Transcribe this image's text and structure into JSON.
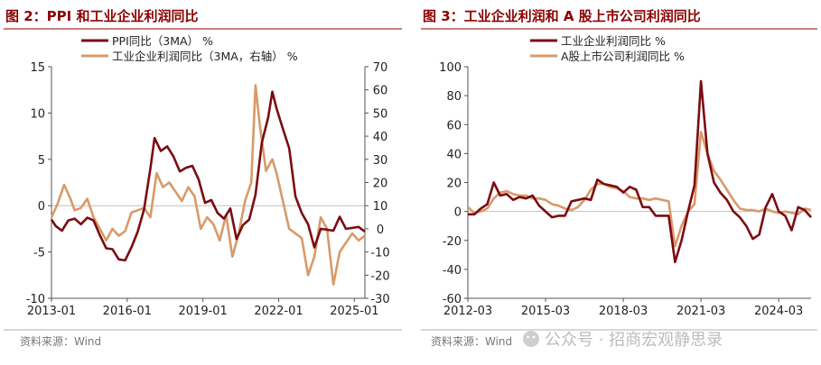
{
  "colors": {
    "title": "#8B0000",
    "series1": "#7B0C12",
    "series2": "#D89A68",
    "axis": "#555555",
    "source": "#777777",
    "watermark": "#B9B9B9"
  },
  "left_figure": {
    "title": "图 2：PPI 和工业企业利润同比",
    "source": "资料来源：Wind"
  },
  "right_figure": {
    "title": "图 3：工业企业利润和 A 股上市公司利润同比",
    "source": "资料来源：Wind"
  },
  "watermark": "公众号 · 招商宏观静思录",
  "chart_data": [
    {
      "type": "line",
      "x_tick_labels": [
        "2013-01",
        "2016-01",
        "2019-01",
        "2022-01",
        "2025-01"
      ],
      "xlim": [
        "2013-01",
        "2025-06"
      ],
      "ylim": [
        -10,
        15
      ],
      "y_ticks": [
        -10,
        -5,
        0,
        5,
        10,
        15
      ],
      "y2lim": [
        -30,
        70
      ],
      "y2_ticks": [
        -30,
        -20,
        -10,
        0,
        10,
        20,
        30,
        40,
        50,
        60,
        70
      ],
      "legend": [
        "PPI同比（3MA） %",
        "工业企业利润同比（3MA，右轴） %"
      ],
      "legend_position": "top",
      "series": [
        {
          "name": "PPI同比（3MA） %",
          "axis": "left",
          "points": [
            [
              "2013-01",
              -1.5
            ],
            [
              "2013-03",
              -2.2
            ],
            [
              "2013-06",
              -2.7
            ],
            [
              "2013-09",
              -1.6
            ],
            [
              "2013-12",
              -1.4
            ],
            [
              "2014-03",
              -2.0
            ],
            [
              "2014-06",
              -1.3
            ],
            [
              "2014-09",
              -1.6
            ],
            [
              "2014-12",
              -3.2
            ],
            [
              "2015-03",
              -4.6
            ],
            [
              "2015-06",
              -4.7
            ],
            [
              "2015-09",
              -5.8
            ],
            [
              "2015-12",
              -5.9
            ],
            [
              "2016-03",
              -4.5
            ],
            [
              "2016-06",
              -2.8
            ],
            [
              "2016-09",
              -0.4
            ],
            [
              "2016-12",
              4.0
            ],
            [
              "2017-02",
              7.3
            ],
            [
              "2017-05",
              5.9
            ],
            [
              "2017-08",
              6.4
            ],
            [
              "2017-11",
              5.3
            ],
            [
              "2018-02",
              3.7
            ],
            [
              "2018-05",
              4.1
            ],
            [
              "2018-08",
              4.3
            ],
            [
              "2018-11",
              2.8
            ],
            [
              "2019-02",
              0.3
            ],
            [
              "2019-05",
              0.6
            ],
            [
              "2019-08",
              -0.8
            ],
            [
              "2019-11",
              -1.4
            ],
            [
              "2020-02",
              -0.3
            ],
            [
              "2020-05",
              -3.6
            ],
            [
              "2020-08",
              -2.1
            ],
            [
              "2020-11",
              -1.5
            ],
            [
              "2021-02",
              1.2
            ],
            [
              "2021-05",
              6.8
            ],
            [
              "2021-08",
              9.5
            ],
            [
              "2021-10",
              12.3
            ],
            [
              "2021-12",
              10.5
            ],
            [
              "2022-03",
              8.3
            ],
            [
              "2022-06",
              6.2
            ],
            [
              "2022-09",
              1.0
            ],
            [
              "2022-12",
              -0.8
            ],
            [
              "2023-03",
              -2.0
            ],
            [
              "2023-06",
              -4.5
            ],
            [
              "2023-09",
              -2.5
            ],
            [
              "2023-12",
              -2.6
            ],
            [
              "2024-03",
              -2.7
            ],
            [
              "2024-06",
              -1.2
            ],
            [
              "2024-09",
              -2.5
            ],
            [
              "2024-12",
              -2.4
            ],
            [
              "2025-03",
              -2.3
            ],
            [
              "2025-06",
              -2.8
            ]
          ]
        },
        {
          "name": "工业企业利润同比（3MA，右轴） %",
          "axis": "right",
          "points": [
            [
              "2013-01",
              5
            ],
            [
              "2013-04",
              11
            ],
            [
              "2013-07",
              19
            ],
            [
              "2013-10",
              13
            ],
            [
              "2013-12",
              8
            ],
            [
              "2014-03",
              9
            ],
            [
              "2014-06",
              13
            ],
            [
              "2014-09",
              5
            ],
            [
              "2014-12",
              0
            ],
            [
              "2015-03",
              -5
            ],
            [
              "2015-06",
              0
            ],
            [
              "2015-09",
              -3
            ],
            [
              "2015-12",
              -1
            ],
            [
              "2016-03",
              7
            ],
            [
              "2016-06",
              8
            ],
            [
              "2016-09",
              9
            ],
            [
              "2016-12",
              5
            ],
            [
              "2017-03",
              24
            ],
            [
              "2017-06",
              18
            ],
            [
              "2017-09",
              20
            ],
            [
              "2017-12",
              16
            ],
            [
              "2018-03",
              12
            ],
            [
              "2018-06",
              18
            ],
            [
              "2018-09",
              14
            ],
            [
              "2018-12",
              0
            ],
            [
              "2019-03",
              5
            ],
            [
              "2019-06",
              2
            ],
            [
              "2019-09",
              -5
            ],
            [
              "2019-12",
              6
            ],
            [
              "2020-03",
              -12
            ],
            [
              "2020-06",
              -2
            ],
            [
              "2020-09",
              12
            ],
            [
              "2020-12",
              20
            ],
            [
              "2021-02",
              62
            ],
            [
              "2021-04",
              45
            ],
            [
              "2021-07",
              25
            ],
            [
              "2021-10",
              30
            ],
            [
              "2021-12",
              24
            ],
            [
              "2022-03",
              12
            ],
            [
              "2022-06",
              0
            ],
            [
              "2022-09",
              -2
            ],
            [
              "2022-12",
              -4
            ],
            [
              "2023-03",
              -20
            ],
            [
              "2023-06",
              -12
            ],
            [
              "2023-09",
              5
            ],
            [
              "2023-12",
              0
            ],
            [
              "2024-03",
              -24
            ],
            [
              "2024-06",
              -10
            ],
            [
              "2024-09",
              -6
            ],
            [
              "2024-12",
              -2
            ],
            [
              "2025-03",
              -5
            ],
            [
              "2025-06",
              -3
            ]
          ]
        }
      ]
    },
    {
      "type": "line",
      "x_tick_labels": [
        "2012-03",
        "2015-03",
        "2018-03",
        "2021-03",
        "2024-03"
      ],
      "xlim": [
        "2012-03",
        "2025-06"
      ],
      "ylim": [
        -60,
        100
      ],
      "y_ticks": [
        -60,
        -40,
        -20,
        0,
        20,
        40,
        60,
        80,
        100
      ],
      "legend": [
        "工业企业利润同比 %",
        "A股上市公司利润同比 %"
      ],
      "legend_position": "top",
      "series": [
        {
          "name": "工业企业利润同比 %",
          "points": [
            [
              "2012-03",
              -2
            ],
            [
              "2012-06",
              -2
            ],
            [
              "2012-09",
              2
            ],
            [
              "2012-12",
              5
            ],
            [
              "2013-03",
              20
            ],
            [
              "2013-06",
              11
            ],
            [
              "2013-09",
              12
            ],
            [
              "2013-12",
              8
            ],
            [
              "2014-03",
              10
            ],
            [
              "2014-06",
              9
            ],
            [
              "2014-09",
              11
            ],
            [
              "2014-12",
              4
            ],
            [
              "2015-03",
              0
            ],
            [
              "2015-06",
              -4
            ],
            [
              "2015-09",
              -3
            ],
            [
              "2015-12",
              -3
            ],
            [
              "2016-03",
              7
            ],
            [
              "2016-06",
              8
            ],
            [
              "2016-09",
              9
            ],
            [
              "2016-12",
              8
            ],
            [
              "2017-03",
              22
            ],
            [
              "2017-06",
              19
            ],
            [
              "2017-09",
              18
            ],
            [
              "2017-12",
              17
            ],
            [
              "2018-03",
              13
            ],
            [
              "2018-06",
              17
            ],
            [
              "2018-09",
              15
            ],
            [
              "2018-12",
              3
            ],
            [
              "2019-03",
              3
            ],
            [
              "2019-06",
              -3
            ],
            [
              "2019-09",
              -3
            ],
            [
              "2019-12",
              -3
            ],
            [
              "2020-03",
              -35
            ],
            [
              "2020-06",
              -20
            ],
            [
              "2020-09",
              0
            ],
            [
              "2020-12",
              18
            ],
            [
              "2021-03",
              90
            ],
            [
              "2021-06",
              40
            ],
            [
              "2021-09",
              20
            ],
            [
              "2021-12",
              13
            ],
            [
              "2022-03",
              8
            ],
            [
              "2022-06",
              0
            ],
            [
              "2022-09",
              -4
            ],
            [
              "2022-12",
              -10
            ],
            [
              "2023-03",
              -19
            ],
            [
              "2023-06",
              -16
            ],
            [
              "2023-09",
              3
            ],
            [
              "2023-12",
              12
            ],
            [
              "2024-03",
              0
            ],
            [
              "2024-06",
              -3
            ],
            [
              "2024-09",
              -13
            ],
            [
              "2024-12",
              3
            ],
            [
              "2025-03",
              1
            ],
            [
              "2025-06",
              -4
            ]
          ]
        },
        {
          "name": "A股上市公司利润同比 %",
          "points": [
            [
              "2012-03",
              3
            ],
            [
              "2012-06",
              -1
            ],
            [
              "2012-09",
              0
            ],
            [
              "2012-12",
              2
            ],
            [
              "2013-03",
              9
            ],
            [
              "2013-06",
              13
            ],
            [
              "2013-09",
              14
            ],
            [
              "2013-12",
              12
            ],
            [
              "2014-03",
              11
            ],
            [
              "2014-06",
              11
            ],
            [
              "2014-09",
              9
            ],
            [
              "2014-12",
              9
            ],
            [
              "2015-03",
              8
            ],
            [
              "2015-06",
              5
            ],
            [
              "2015-09",
              4
            ],
            [
              "2015-12",
              2
            ],
            [
              "2016-03",
              1
            ],
            [
              "2016-06",
              3
            ],
            [
              "2016-09",
              8
            ],
            [
              "2016-12",
              15
            ],
            [
              "2017-03",
              19
            ],
            [
              "2017-06",
              19
            ],
            [
              "2017-09",
              17
            ],
            [
              "2017-12",
              16
            ],
            [
              "2018-03",
              14
            ],
            [
              "2018-06",
              10
            ],
            [
              "2018-09",
              9
            ],
            [
              "2018-12",
              9
            ],
            [
              "2019-03",
              8
            ],
            [
              "2019-06",
              9
            ],
            [
              "2019-09",
              8
            ],
            [
              "2019-12",
              7
            ],
            [
              "2020-03",
              -24
            ],
            [
              "2020-06",
              -10
            ],
            [
              "2020-09",
              0
            ],
            [
              "2020-12",
              5
            ],
            [
              "2021-03",
              55
            ],
            [
              "2021-06",
              40
            ],
            [
              "2021-09",
              28
            ],
            [
              "2021-12",
              22
            ],
            [
              "2022-03",
              15
            ],
            [
              "2022-06",
              8
            ],
            [
              "2022-09",
              2
            ],
            [
              "2022-12",
              1
            ],
            [
              "2023-03",
              1
            ],
            [
              "2023-06",
              0
            ],
            [
              "2023-09",
              2
            ],
            [
              "2023-12",
              0
            ],
            [
              "2024-03",
              -1
            ],
            [
              "2024-06",
              0
            ],
            [
              "2024-09",
              -1
            ],
            [
              "2024-12",
              -2
            ],
            [
              "2025-03",
              2
            ],
            [
              "2025-06",
              1
            ]
          ]
        }
      ]
    }
  ]
}
